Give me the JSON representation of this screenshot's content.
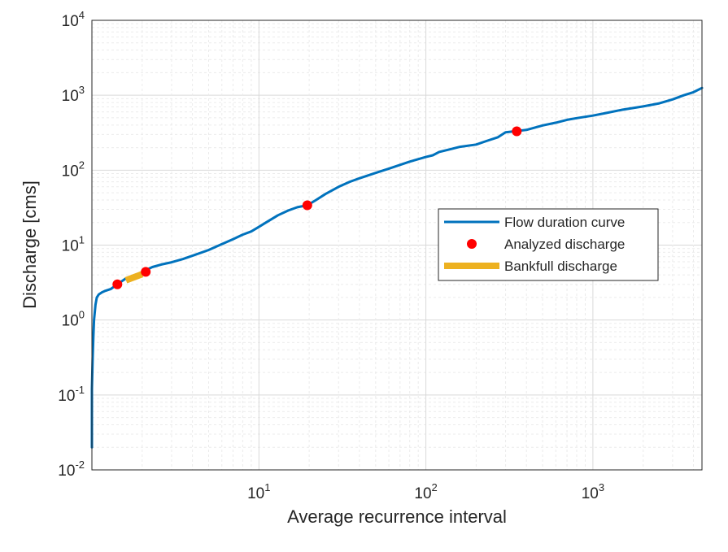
{
  "chart_data": {
    "type": "line",
    "title": "",
    "xlabel": "Average recurrence interval",
    "ylabel": "Discharge [cms]",
    "xscale": "log",
    "yscale": "log",
    "xlim": [
      1,
      4500
    ],
    "ylim": [
      0.01,
      10000
    ],
    "grid": true,
    "minor_grid": true,
    "legend_position": "center-right",
    "x_ticks": [
      {
        "value": 10,
        "base": "10",
        "exp": "1"
      },
      {
        "value": 100,
        "base": "10",
        "exp": "2"
      },
      {
        "value": 1000,
        "base": "10",
        "exp": "3"
      }
    ],
    "y_ticks": [
      {
        "value": 0.01,
        "base": "10",
        "exp": "-2"
      },
      {
        "value": 0.1,
        "base": "10",
        "exp": "-1"
      },
      {
        "value": 1,
        "base": "10",
        "exp": "0"
      },
      {
        "value": 10,
        "base": "10",
        "exp": "1"
      },
      {
        "value": 100,
        "base": "10",
        "exp": "2"
      },
      {
        "value": 1000,
        "base": "10",
        "exp": "3"
      },
      {
        "value": 10000,
        "base": "10",
        "exp": "4"
      }
    ],
    "series": [
      {
        "name": "Flow duration curve",
        "kind": "line",
        "color": "#0072BD",
        "x": [
          1.0,
          1.0,
          1.01,
          1.02,
          1.03,
          1.05,
          1.07,
          1.1,
          1.15,
          1.2,
          1.3,
          1.42,
          1.6,
          1.8,
          2.0,
          2.3,
          2.6,
          3.0,
          3.5,
          4.0,
          5.0,
          6.0,
          7.0,
          8.0,
          9.0,
          10,
          11,
          13,
          15,
          17,
          19.5,
          22,
          25,
          30,
          35,
          40,
          50,
          60,
          80,
          100,
          110,
          120,
          140,
          160,
          200,
          230,
          270,
          300,
          340,
          400,
          500,
          600,
          700,
          800,
          1000,
          1200,
          1500,
          2000,
          2500,
          3000,
          3500,
          4000,
          4500
        ],
        "y": [
          0.02,
          0.12,
          0.3,
          0.6,
          1.0,
          1.6,
          2.0,
          2.2,
          2.35,
          2.45,
          2.6,
          3.0,
          3.6,
          3.9,
          4.4,
          5.1,
          5.5,
          5.9,
          6.5,
          7.2,
          8.6,
          10.3,
          12.0,
          13.8,
          15.2,
          17.5,
          20,
          25,
          29,
          32,
          34,
          40,
          48,
          60,
          70,
          78,
          92,
          105,
          130,
          150,
          158,
          175,
          190,
          205,
          220,
          245,
          275,
          320,
          330,
          345,
          395,
          430,
          470,
          495,
          535,
          580,
          640,
          710,
          780,
          880,
          1000,
          1100,
          1250
        ]
      },
      {
        "name": "Analyzed discharge",
        "kind": "markers",
        "color": "#FF0000",
        "x": [
          1.42,
          2.1,
          19.5,
          350
        ],
        "y": [
          3.0,
          4.4,
          34,
          330
        ]
      },
      {
        "name": "Bankfull discharge",
        "kind": "line",
        "color": "#EDB120",
        "x": [
          1.6,
          2.0
        ],
        "y": [
          3.4,
          4.1
        ]
      }
    ]
  }
}
